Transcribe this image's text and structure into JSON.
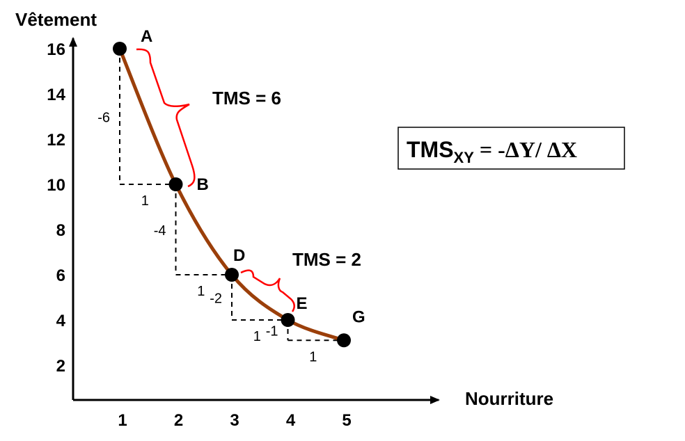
{
  "chart_data": {
    "type": "line",
    "xlabel": "Nourriture",
    "ylabel": "Vêtement",
    "xlim": [
      0.6,
      5.6
    ],
    "ylim": [
      0.6,
      16
    ],
    "x_ticks": [
      "1",
      "2",
      "3",
      "4",
      "5"
    ],
    "y_ticks": [
      "16",
      "14",
      "12",
      "10",
      "8",
      "6",
      "4",
      "2"
    ],
    "colors": {
      "curve": "#9B3F0A",
      "brace": "#ff0000",
      "axis": "#000000"
    },
    "points": [
      {
        "label": "A",
        "x": 1,
        "y": 16
      },
      {
        "label": "B",
        "x": 2,
        "y": 10
      },
      {
        "label": "D",
        "x": 3,
        "y": 6
      },
      {
        "label": "E",
        "x": 4,
        "y": 4
      },
      {
        "label": "G",
        "x": 5,
        "y": 3.1
      }
    ],
    "steps": [
      {
        "dy": "-6",
        "dx": "1"
      },
      {
        "dy": "-4",
        "dx": "1"
      },
      {
        "dy": "-2",
        "dx": "1"
      },
      {
        "dy": "-1",
        "dx": "1"
      }
    ],
    "annotations": {
      "tms_ab": "TMS = 6",
      "tms_de": "TMS = 2"
    },
    "formula": {
      "lhs": "TMS",
      "sub": "XY",
      "rhs": " = -ΔY/ ΔX"
    }
  }
}
